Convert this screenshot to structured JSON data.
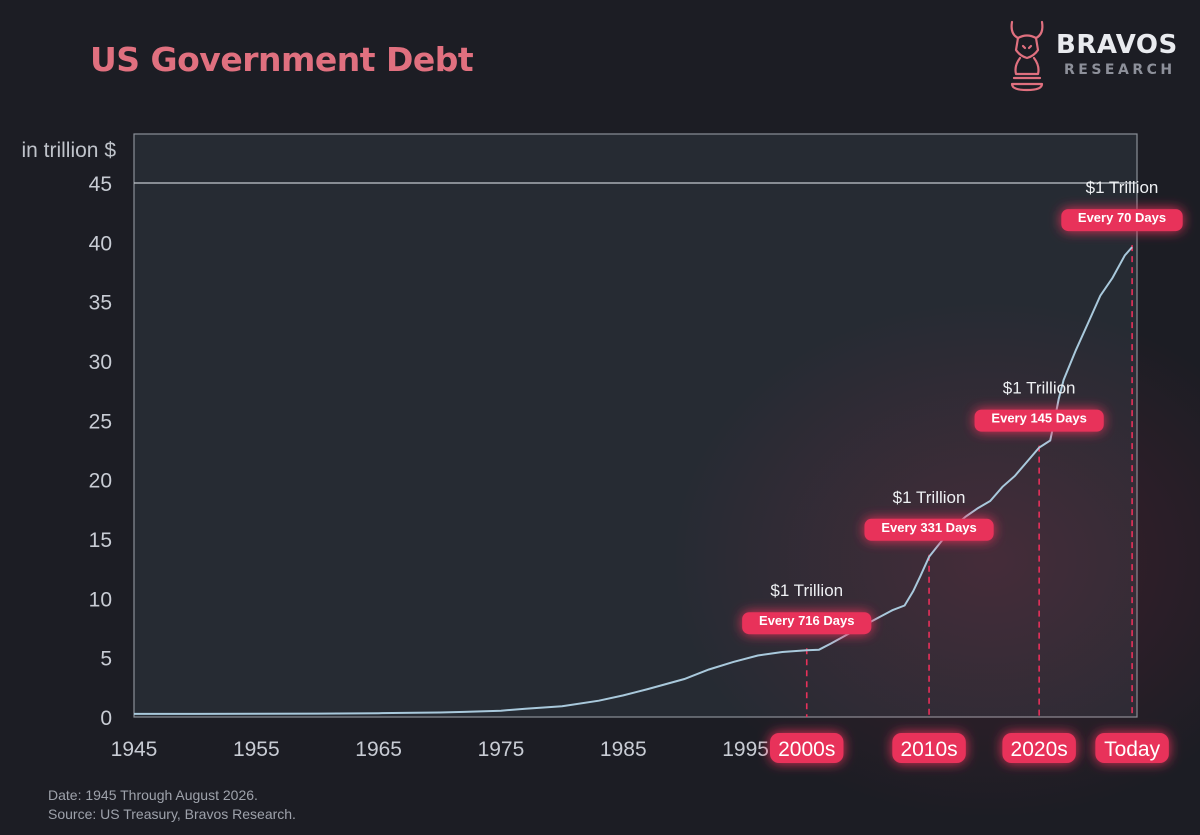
{
  "title": "US Government Debt",
  "brand": {
    "name": "BRAVOS",
    "sub": "RESEARCH"
  },
  "footer": {
    "date_note": "Date: 1945 Through August 2026.",
    "source_note": "Source: US Treasury, Bravos Research."
  },
  "colors": {
    "accent": "#e0707f",
    "highlight": "#e8305a",
    "line": "#a9c9dc",
    "plot_bg": "#262b33",
    "page_bg": "#1c1d24"
  },
  "chart_data": {
    "type": "line",
    "title": "US Government Debt",
    "ylabel": "in trillion $",
    "xlabel": "",
    "xlim": [
      1945,
      2027
    ],
    "ylim": [
      0,
      45
    ],
    "grid": false,
    "y_ticks": [
      0,
      5,
      10,
      15,
      20,
      25,
      30,
      35,
      40,
      45
    ],
    "x_ticks": [
      1945,
      1955,
      1965,
      1975,
      1985,
      1995
    ],
    "series": [
      {
        "x": [
          1945,
          1950,
          1955,
          1960,
          1965,
          1968,
          1970,
          1972,
          1975,
          1977,
          1980,
          1983,
          1985,
          1987,
          1990,
          1992,
          1994,
          1996,
          1998,
          2000,
          2001,
          2002,
          2004,
          2006,
          2007,
          2008,
          2008.7,
          2009.3,
          2010,
          2011,
          2012,
          2013,
          2014,
          2015,
          2016,
          2017,
          2018,
          2019,
          2019.9,
          2020.3,
          2020.6,
          2021,
          2022,
          2023,
          2024,
          2025,
          2026,
          2026.6
        ],
        "y": [
          0.26,
          0.26,
          0.27,
          0.29,
          0.32,
          0.35,
          0.38,
          0.43,
          0.53,
          0.7,
          0.91,
          1.37,
          1.82,
          2.35,
          3.2,
          4.0,
          4.64,
          5.18,
          5.48,
          5.63,
          5.67,
          6.2,
          7.35,
          8.45,
          9.0,
          9.4,
          10.6,
          11.9,
          13.5,
          14.8,
          16.0,
          16.9,
          17.6,
          18.2,
          19.4,
          20.3,
          21.5,
          22.7,
          23.3,
          25.2,
          26.8,
          28.4,
          30.9,
          33.2,
          35.5,
          37.0,
          38.9,
          39.6
        ]
      }
    ],
    "callouts": [
      {
        "label": "$1 Trillion",
        "badge": "Every 716 Days",
        "x": 2000,
        "y": 5.63
      },
      {
        "label": "$1 Trillion",
        "badge": "Every 331 Days",
        "x": 2010,
        "y": 13.5
      },
      {
        "label": "$1 Trillion",
        "badge": "Every 145 Days",
        "x": 2019,
        "y": 22.7
      },
      {
        "label": "$1 Trillion",
        "badge": "Every 70 Days",
        "x": 2026.6,
        "y": 39.6
      }
    ],
    "x_badges": [
      {
        "label": "2000s",
        "x": 2000
      },
      {
        "label": "2010s",
        "x": 2010
      },
      {
        "label": "2020s",
        "x": 2019
      },
      {
        "label": "Today",
        "x": 2026.6
      }
    ]
  }
}
